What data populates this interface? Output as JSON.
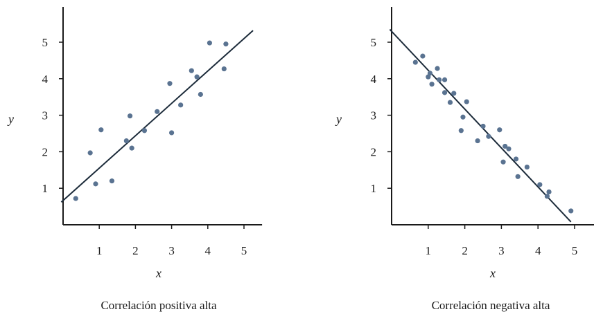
{
  "chart_data": [
    {
      "type": "scatter",
      "title": "Correlación positiva alta",
      "xlabel": "x",
      "ylabel": "y",
      "x_ticks": [
        "1",
        "2",
        "3",
        "4",
        "5"
      ],
      "y_ticks": [
        "1",
        "2",
        "3",
        "4",
        "5"
      ],
      "xlim": [
        0,
        5.5
      ],
      "ylim": [
        0,
        5.75
      ],
      "grid": false,
      "point_color": "#5a7391",
      "line_color": "#1c2b3a",
      "points": [
        {
          "x": 0.35,
          "y": 0.72
        },
        {
          "x": 0.75,
          "y": 1.97
        },
        {
          "x": 0.9,
          "y": 1.12
        },
        {
          "x": 1.05,
          "y": 2.6
        },
        {
          "x": 1.35,
          "y": 1.2
        },
        {
          "x": 1.75,
          "y": 2.3
        },
        {
          "x": 1.85,
          "y": 2.98
        },
        {
          "x": 1.9,
          "y": 2.1
        },
        {
          "x": 2.25,
          "y": 2.58
        },
        {
          "x": 2.6,
          "y": 3.1
        },
        {
          "x": 2.95,
          "y": 3.87
        },
        {
          "x": 3.0,
          "y": 2.52
        },
        {
          "x": 3.25,
          "y": 3.28
        },
        {
          "x": 3.55,
          "y": 4.22
        },
        {
          "x": 3.7,
          "y": 4.05
        },
        {
          "x": 3.8,
          "y": 3.57
        },
        {
          "x": 4.05,
          "y": 4.98
        },
        {
          "x": 4.45,
          "y": 4.27
        },
        {
          "x": 4.5,
          "y": 4.95
        }
      ],
      "fit_line": {
        "x": [
          -0.05,
          5.25
        ],
        "y": [
          0.62,
          5.32
        ]
      }
    },
    {
      "type": "scatter",
      "title": "Correlación negativa alta",
      "xlabel": "x",
      "ylabel": "y",
      "x_ticks": [
        "1",
        "2",
        "3",
        "4",
        "5"
      ],
      "y_ticks": [
        "1",
        "2",
        "3",
        "4",
        "5"
      ],
      "xlim": [
        0,
        5.55
      ],
      "ylim": [
        0,
        5.75
      ],
      "grid": false,
      "point_color": "#5a7391",
      "line_color": "#1c2b3a",
      "points": [
        {
          "x": 0.65,
          "y": 4.45
        },
        {
          "x": 0.85,
          "y": 4.62
        },
        {
          "x": 1.0,
          "y": 4.05
        },
        {
          "x": 1.05,
          "y": 4.15
        },
        {
          "x": 1.1,
          "y": 3.85
        },
        {
          "x": 1.25,
          "y": 4.28
        },
        {
          "x": 1.3,
          "y": 3.97
        },
        {
          "x": 1.45,
          "y": 3.97
        },
        {
          "x": 1.45,
          "y": 3.62
        },
        {
          "x": 1.6,
          "y": 3.35
        },
        {
          "x": 1.7,
          "y": 3.6
        },
        {
          "x": 1.9,
          "y": 2.58
        },
        {
          "x": 1.95,
          "y": 2.95
        },
        {
          "x": 2.05,
          "y": 3.37
        },
        {
          "x": 2.35,
          "y": 2.3
        },
        {
          "x": 2.5,
          "y": 2.7
        },
        {
          "x": 2.65,
          "y": 2.42
        },
        {
          "x": 2.95,
          "y": 2.6
        },
        {
          "x": 3.05,
          "y": 1.72
        },
        {
          "x": 3.1,
          "y": 2.15
        },
        {
          "x": 3.2,
          "y": 2.08
        },
        {
          "x": 3.4,
          "y": 1.8
        },
        {
          "x": 3.45,
          "y": 1.32
        },
        {
          "x": 3.7,
          "y": 1.58
        },
        {
          "x": 4.05,
          "y": 1.1
        },
        {
          "x": 4.25,
          "y": 0.78
        },
        {
          "x": 4.3,
          "y": 0.9
        },
        {
          "x": 4.9,
          "y": 0.38
        }
      ],
      "fit_line": {
        "x": [
          -0.05,
          4.9
        ],
        "y": [
          5.35,
          0.08
        ]
      }
    }
  ]
}
